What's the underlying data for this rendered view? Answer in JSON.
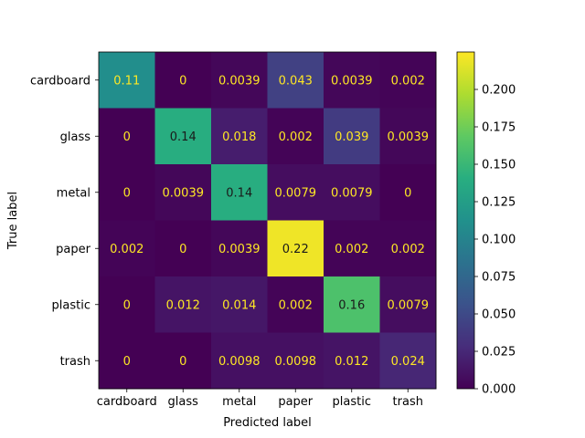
{
  "chart_data": {
    "type": "heatmap",
    "title": "",
    "xlabel": "Predicted label",
    "ylabel": "True label",
    "x_categories": [
      "cardboard",
      "glass",
      "metal",
      "paper",
      "plastic",
      "trash"
    ],
    "y_categories": [
      "cardboard",
      "glass",
      "metal",
      "paper",
      "plastic",
      "trash"
    ],
    "values": [
      [
        0.11,
        0,
        0.0039,
        0.043,
        0.0039,
        0.002
      ],
      [
        0,
        0.14,
        0.018,
        0.002,
        0.039,
        0.0039
      ],
      [
        0,
        0.0039,
        0.14,
        0.0079,
        0.0079,
        0
      ],
      [
        0.002,
        0,
        0.0039,
        0.22,
        0.002,
        0.002
      ],
      [
        0,
        0.012,
        0.014,
        0.002,
        0.16,
        0.0079
      ],
      [
        0,
        0,
        0.0098,
        0.0098,
        0.012,
        0.024
      ]
    ],
    "labels": [
      [
        "0.11",
        "0",
        "0.0039",
        "0.043",
        "0.0039",
        "0.002"
      ],
      [
        "0",
        "0.14",
        "0.018",
        "0.002",
        "0.039",
        "0.0039"
      ],
      [
        "0",
        "0.0039",
        "0.14",
        "0.0079",
        "0.0079",
        "0"
      ],
      [
        "0.002",
        "0",
        "0.0039",
        "0.22",
        "0.002",
        "0.002"
      ],
      [
        "0",
        "0.012",
        "0.014",
        "0.002",
        "0.16",
        "0.0079"
      ],
      [
        "0",
        "0",
        "0.0098",
        "0.0098",
        "0.012",
        "0.024"
      ]
    ],
    "colormap": "viridis",
    "colorbar": {
      "min": 0,
      "max": 0.225,
      "ticks": [
        "0.000",
        "0.025",
        "0.050",
        "0.075",
        "0.100",
        "0.125",
        "0.150",
        "0.175",
        "0.200"
      ]
    },
    "text_colors": {
      "light": "#fde725",
      "dark": "#1a1a1a"
    }
  }
}
